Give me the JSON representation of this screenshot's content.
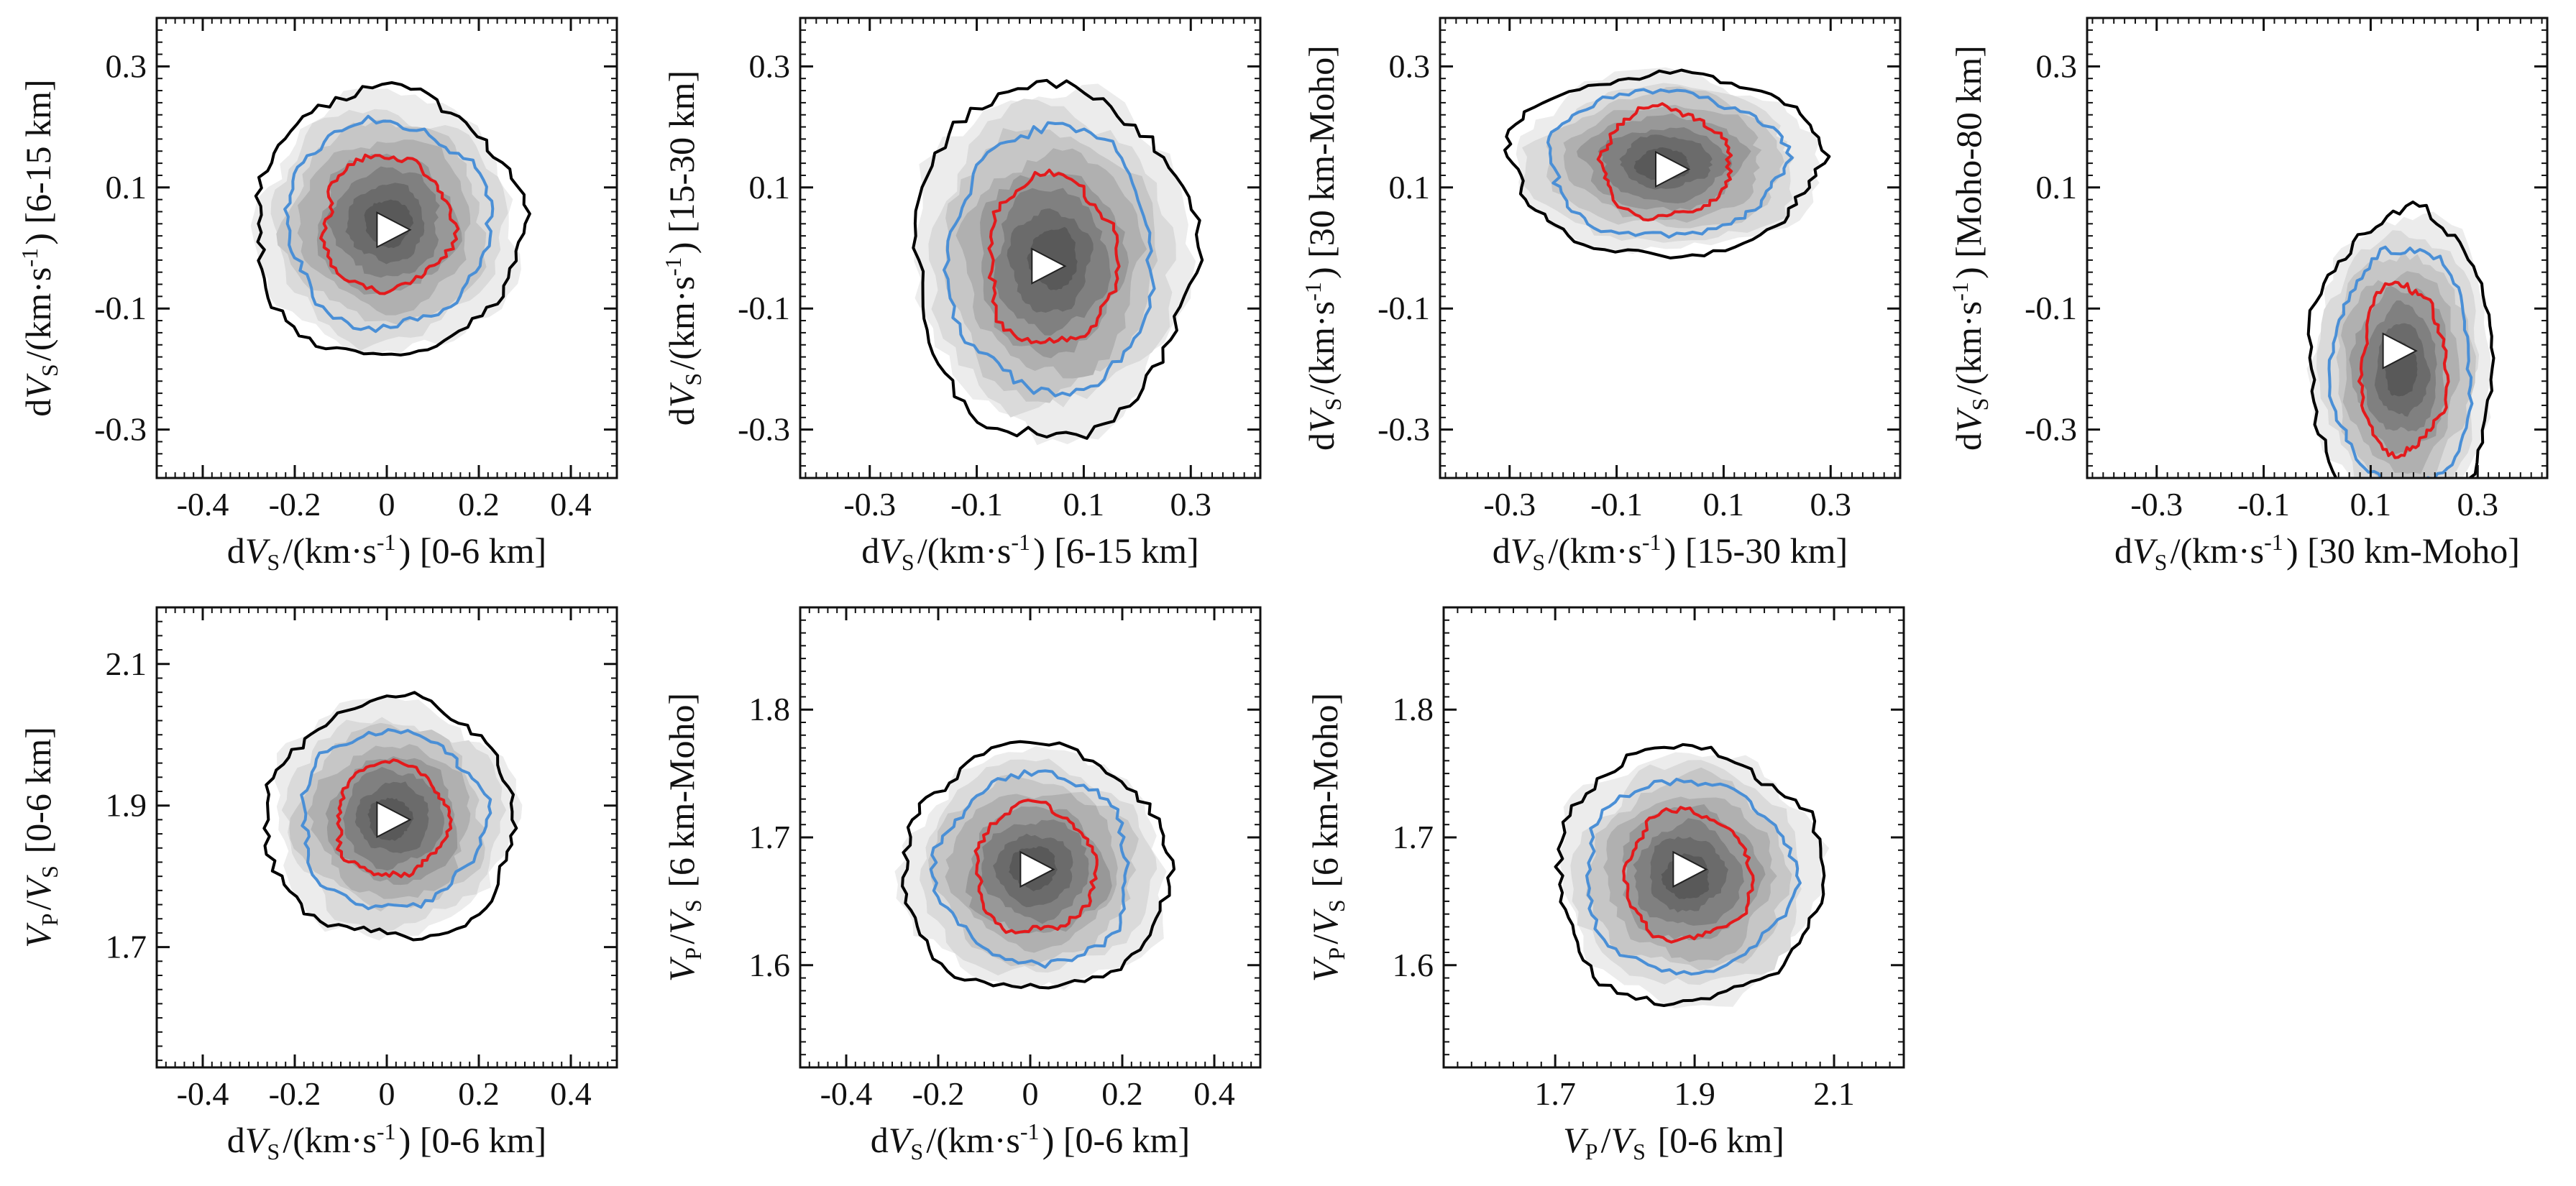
{
  "figure": {
    "contour_colors": {
      "outer": "#000000",
      "middle": "#4a8fd6",
      "inner": "#e31a1c"
    },
    "marker": {
      "shape": "triangle-right",
      "fill": "#ffffff",
      "stroke": "#222222"
    }
  },
  "chart_data": [
    {
      "type": "heatmap",
      "panel": "a",
      "xlabel": "dV_S/(km·s-1) [0-6 km]",
      "ylabel": "dV_S/(km·s-1) [6-15 km]",
      "xlim": [
        -0.5,
        0.5
      ],
      "ylim": [
        -0.38,
        0.38
      ],
      "xticks": [
        "-0.4",
        "-0.2",
        "0",
        "0.2",
        "0.4"
      ],
      "yticks": [
        "0.3",
        "0.1",
        "-0.1",
        "-0.3"
      ],
      "marker": [
        0.01,
        0.03
      ],
      "center": [
        0.0,
        0.04
      ],
      "radii": {
        "outer": [
          0.29,
          0.22
        ],
        "middle": [
          0.22,
          0.17
        ],
        "inner": [
          0.14,
          0.11
        ]
      }
    },
    {
      "type": "heatmap",
      "panel": "b",
      "xlabel": "dV_S/(km·s-1) [6-15 km]",
      "ylabel": "dV_S/(km·s-1) [15-30 km]",
      "xlim": [
        -0.43,
        0.43
      ],
      "ylim": [
        -0.38,
        0.38
      ],
      "xticks": [
        "-0.3",
        "-0.1",
        "0.1",
        "0.3"
      ],
      "yticks": [
        "0.3",
        "0.1",
        "-0.1",
        "-0.3"
      ],
      "marker": [
        0.03,
        -0.03
      ],
      "center": [
        0.04,
        -0.02
      ],
      "radii": {
        "outer": [
          0.26,
          0.29
        ],
        "middle": [
          0.19,
          0.22
        ],
        "inner": [
          0.12,
          0.14
        ]
      }
    },
    {
      "type": "heatmap",
      "panel": "c",
      "xlabel": "dV_S/(km·s-1) [15-30 km]",
      "ylabel": "dV_S/(km·s-1) [30 km-Moho]",
      "xlim": [
        -0.43,
        0.43
      ],
      "ylim": [
        -0.38,
        0.38
      ],
      "xticks": [
        "-0.3",
        "-0.1",
        "0.1",
        "0.3"
      ],
      "yticks": [
        "0.3",
        "0.1",
        "-0.1",
        "-0.3"
      ],
      "marker": [
        0.0,
        0.13
      ],
      "center": [
        -0.01,
        0.14
      ],
      "radii": {
        "outer": [
          0.29,
          0.15
        ],
        "middle": [
          0.22,
          0.12
        ],
        "inner": [
          0.12,
          0.09
        ]
      }
    },
    {
      "type": "heatmap",
      "panel": "d",
      "xlabel": "dV_S/(km·s-1) [30 km-Moho]",
      "ylabel": "dV_S/(km·s-1) [Moho-80 km]",
      "xlim": [
        -0.43,
        0.43
      ],
      "ylim": [
        -0.38,
        0.38
      ],
      "xticks": [
        "-0.3",
        "-0.1",
        "0.1",
        "0.3"
      ],
      "yticks": [
        "0.3",
        "0.1",
        "-0.1",
        "-0.3"
      ],
      "marker": [
        0.15,
        -0.17
      ],
      "center": [
        0.16,
        -0.2
      ],
      "radii": {
        "outer": [
          0.17,
          0.26
        ],
        "middle": [
          0.13,
          0.2
        ],
        "inner": [
          0.08,
          0.14
        ]
      }
    },
    {
      "type": "heatmap",
      "panel": "e",
      "xlabel": "dV_S/(km·s-1) [0-6 km]",
      "ylabel": "V_P/V_S [0-6 km]",
      "xlim": [
        -0.5,
        0.5
      ],
      "ylim": [
        1.53,
        2.18
      ],
      "xticks": [
        "-0.4",
        "-0.2",
        "0",
        "0.2",
        "0.4"
      ],
      "yticks": [
        "2.1",
        "1.9",
        "1.7"
      ],
      "marker": [
        0.01,
        1.88
      ],
      "center": [
        0.01,
        1.88
      ],
      "radii": {
        "outer": [
          0.27,
          0.17
        ],
        "middle": [
          0.2,
          0.125
        ],
        "inner": [
          0.12,
          0.08
        ]
      }
    },
    {
      "type": "heatmap",
      "panel": "f",
      "xlabel": "dV_S/(km·s-1) [0-6 km]",
      "ylabel": "V_P/V_S [6 km-Moho]",
      "xlim": [
        -0.5,
        0.5
      ],
      "ylim": [
        1.52,
        1.88
      ],
      "xticks": [
        "-0.4",
        "-0.2",
        "0",
        "0.2",
        "0.4"
      ],
      "yticks": [
        "1.8",
        "1.7",
        "1.6"
      ],
      "marker": [
        0.01,
        1.675
      ],
      "center": [
        0.01,
        1.675
      ],
      "radii": {
        "outer": [
          0.29,
          0.095
        ],
        "middle": [
          0.21,
          0.075
        ],
        "inner": [
          0.13,
          0.05
        ]
      }
    },
    {
      "type": "heatmap",
      "panel": "g",
      "xlabel": "V_P/V_S [0-6 km]",
      "ylabel": "V_P/V_S [6 km-Moho]",
      "xlim": [
        1.54,
        2.2
      ],
      "ylim": [
        1.52,
        1.88
      ],
      "xticks": [
        "1.7",
        "1.9",
        "2.1"
      ],
      "yticks": [
        "1.8",
        "1.7",
        "1.6"
      ],
      "marker": [
        1.89,
        1.675
      ],
      "center": [
        1.89,
        1.67
      ],
      "radii": {
        "outer": [
          0.19,
          0.1
        ],
        "middle": [
          0.15,
          0.075
        ],
        "inner": [
          0.09,
          0.05
        ]
      }
    }
  ]
}
